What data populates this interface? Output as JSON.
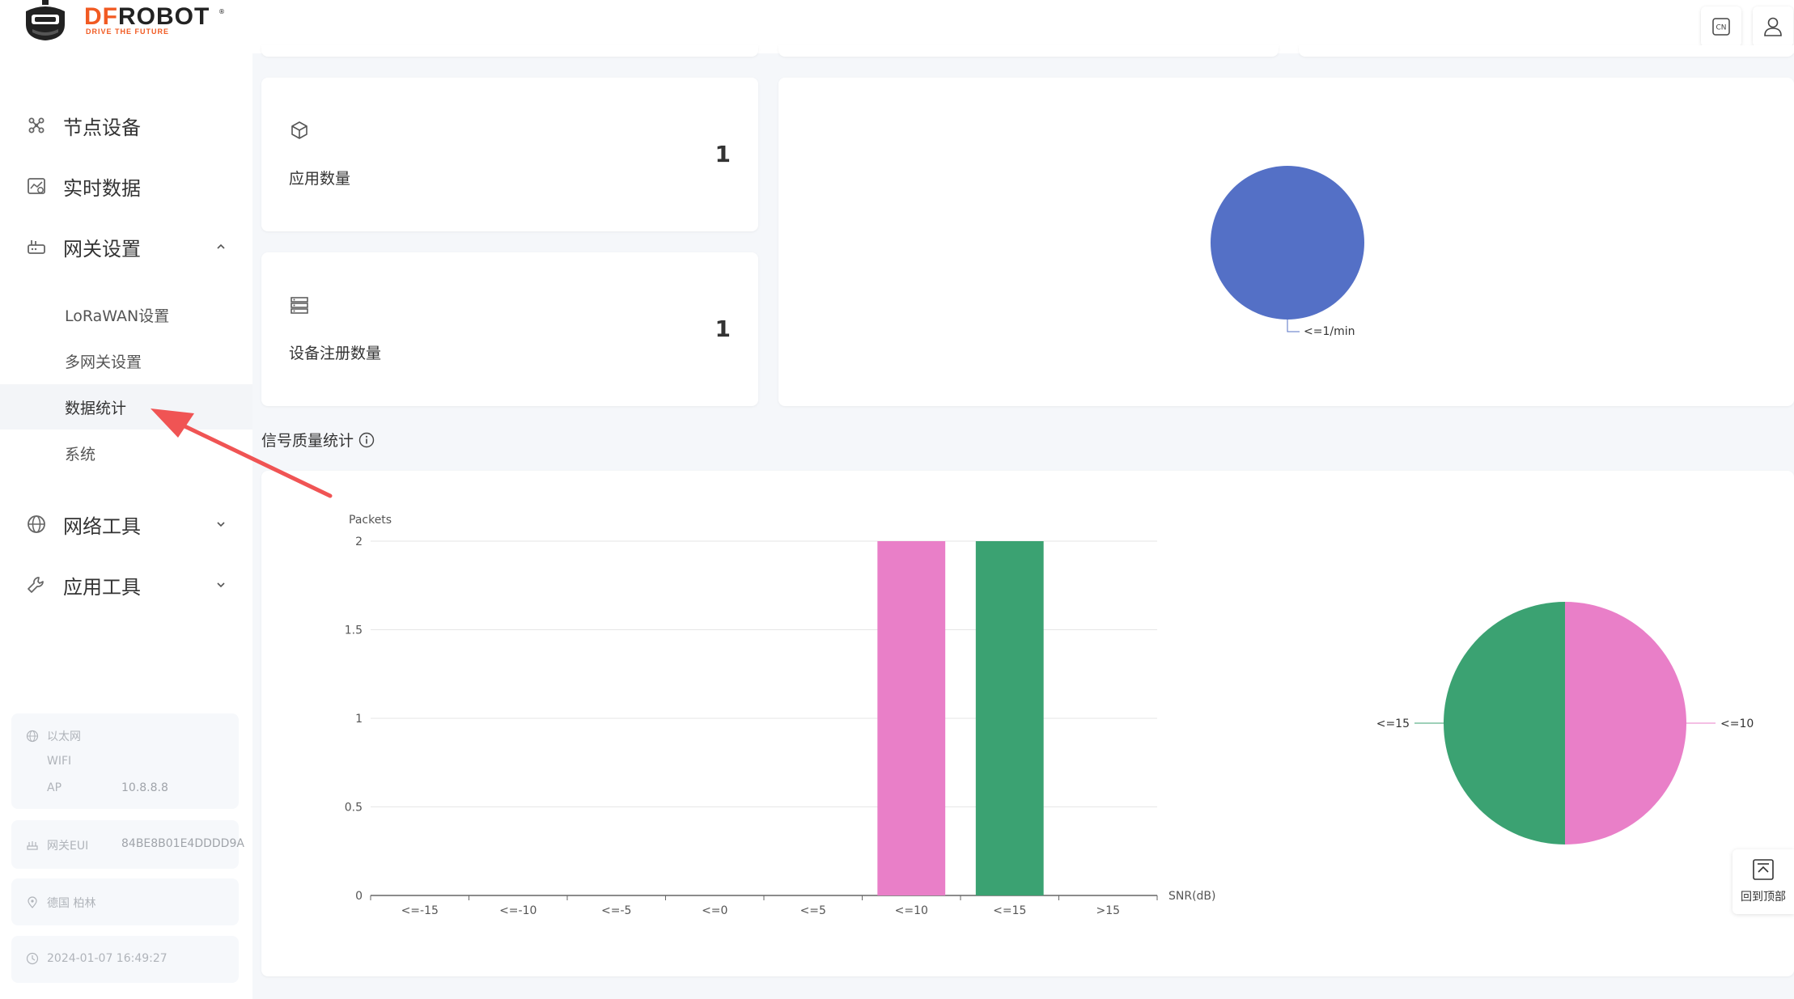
{
  "brand": {
    "name_part1": "DF",
    "name_part2": "ROBOT",
    "tagline": "DRIVE THE FUTURE",
    "registered": "®",
    "accent_color": "#f15a22"
  },
  "sidebar": {
    "menu": [
      {
        "label": "节点设备",
        "icon": "nodes-icon"
      },
      {
        "label": "实时数据",
        "icon": "realtime-chart-icon"
      },
      {
        "label": "网关设置",
        "icon": "router-icon",
        "expanded": true
      },
      {
        "label": "网络工具",
        "icon": "globe-icon",
        "expanded": false
      },
      {
        "label": "应用工具",
        "icon": "wrench-icon",
        "expanded": false
      }
    ],
    "gateway_submenu": [
      {
        "label": "LoRaWAN设置"
      },
      {
        "label": "多网关设置"
      },
      {
        "label": "数据统计",
        "active": true
      },
      {
        "label": "系统"
      }
    ],
    "info": {
      "ethernet_label": "以太网",
      "wifi_label": "WIFI",
      "ap_label": "AP",
      "ap_value": "10.8.8.8",
      "eui_label": "网关EUI",
      "eui_value": "84BE8B01E4DDDD9A",
      "location": "德国 柏林",
      "datetime": "2024-01-07 16:49:27"
    }
  },
  "header": {
    "language_button": "CN"
  },
  "stats": {
    "app_count_label": "应用数量",
    "app_count_value": "1",
    "device_count_label": "设备注册数量",
    "device_count_value": "1"
  },
  "signal_section": {
    "title": "信号质量统计"
  },
  "back_to_top": {
    "label": "回到顶部"
  },
  "chart_data": [
    {
      "type": "pie",
      "slices": [
        {
          "label": "<=1/min",
          "value": 1,
          "color": "#5470c6"
        }
      ]
    },
    {
      "type": "bar",
      "ylabel": "Packets",
      "xlabel": "SNR(dB)",
      "categories": [
        "<=-15",
        "<=-10",
        "<=-5",
        "<=0",
        "<=5",
        "<=10",
        "<=15",
        ">15"
      ],
      "values": [
        0,
        0,
        0,
        0,
        0,
        2,
        2,
        0
      ],
      "colors": [
        "#5470c6",
        "#5470c6",
        "#5470c6",
        "#5470c6",
        "#5470c6",
        "#e97fc8",
        "#3ba272",
        "#5470c6"
      ],
      "ylim": [
        0,
        2
      ],
      "yticks": [
        "0",
        "0.5",
        "1",
        "1.5",
        "2"
      ],
      "grid": true
    },
    {
      "type": "pie",
      "slices": [
        {
          "label": "<=10",
          "value": 2,
          "color": "#e97fc8"
        },
        {
          "label": "<=15",
          "value": 2,
          "color": "#3ba272"
        }
      ]
    }
  ]
}
